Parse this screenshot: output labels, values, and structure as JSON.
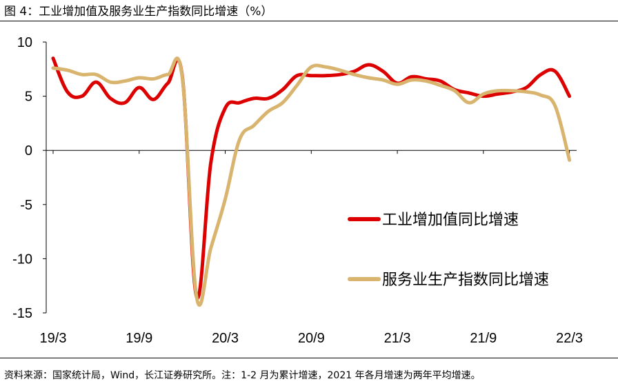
{
  "header": {
    "title": "图 4：工业增加值及服务业生产指数同比增速（%）"
  },
  "footer": {
    "source": "资料来源：国家统计局，Wind，长江证券研究所。注：1-2 月为累计增速，2021 年各月增速为两年平均增速。"
  },
  "chart_data": {
    "type": "line",
    "title": "工业增加值及服务业生产指数同比增速（%）",
    "xlabel": "",
    "ylabel": "",
    "ylim": [
      -15,
      10
    ],
    "yticks": [
      10,
      5,
      0,
      -5,
      -10,
      -15
    ],
    "xticks": [
      {
        "label": "19/3",
        "x": 0
      },
      {
        "label": "19/9",
        "x": 6
      },
      {
        "label": "20/3",
        "x": 12
      },
      {
        "label": "20/9",
        "x": 18
      },
      {
        "label": "21/3",
        "x": 24
      },
      {
        "label": "21/9",
        "x": 30
      },
      {
        "label": "22/3",
        "x": 36
      }
    ],
    "x_unit": "months since 2019/3",
    "grid": false,
    "legend_position": "right",
    "series": [
      {
        "name": "工业增加值同比增速",
        "color": "#dd0000",
        "x": [
          0,
          1,
          2,
          3,
          4,
          5,
          6,
          7,
          8,
          9,
          10,
          11,
          12,
          13,
          14,
          15,
          16,
          17,
          18,
          19,
          20,
          21,
          22,
          23,
          24,
          25,
          26,
          27,
          28,
          29,
          30,
          31,
          32,
          33,
          34,
          35,
          36
        ],
        "values": [
          8.5,
          5.4,
          5.0,
          6.3,
          4.8,
          4.4,
          5.8,
          4.7,
          6.2,
          6.9,
          -13.5,
          -1.1,
          3.9,
          4.4,
          4.8,
          4.8,
          5.6,
          6.9,
          6.9,
          6.9,
          7.0,
          7.3,
          7.9,
          7.3,
          6.2,
          6.8,
          6.6,
          6.4,
          5.6,
          5.3,
          5.0,
          5.2,
          5.4,
          5.8,
          7.0,
          7.3,
          5.0
        ]
      },
      {
        "name": "服务业生产指数同比增速",
        "color": "#d8b46e",
        "x": [
          0,
          1,
          2,
          3,
          4,
          5,
          6,
          7,
          8,
          9,
          10,
          11,
          12,
          13,
          14,
          15,
          16,
          17,
          18,
          19,
          20,
          21,
          22,
          23,
          24,
          25,
          26,
          27,
          28,
          29,
          30,
          31,
          32,
          33,
          34,
          35,
          36
        ],
        "values": [
          7.6,
          7.4,
          7.0,
          7.0,
          6.3,
          6.4,
          6.7,
          6.6,
          7.0,
          6.8,
          -13.5,
          -9.0,
          -4.5,
          1.0,
          2.3,
          3.6,
          4.4,
          6.0,
          7.7,
          7.7,
          7.4,
          7.0,
          6.7,
          6.5,
          6.1,
          6.5,
          6.4,
          6.0,
          5.5,
          4.4,
          5.2,
          5.5,
          5.5,
          5.4,
          5.1,
          4.1,
          -0.9
        ]
      }
    ]
  }
}
